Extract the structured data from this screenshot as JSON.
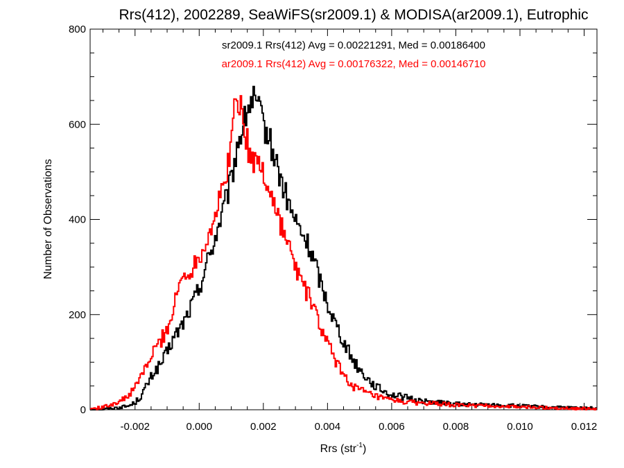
{
  "chart_data": {
    "type": "line",
    "style": "step-histogram",
    "title": "Rrs(412), 2002289, SeaWiFS(sr2009.1) & MODISA(ar2009.1), Eutrophic",
    "xlabel": "Rrs (str",
    "xlabel_sup": "-1",
    "xlabel_close": ")",
    "ylabel": "Number of Observations",
    "xlim": [
      -0.0034,
      0.0124
    ],
    "ylim": [
      0,
      800
    ],
    "grid": false,
    "x_ticks": [
      -0.002,
      0.0,
      0.002,
      0.004,
      0.006,
      0.008,
      0.01,
      0.012
    ],
    "x_tick_labels": [
      "-0.002",
      "0.000",
      "0.002",
      "0.004",
      "0.006",
      "0.008",
      "0.010",
      "0.012"
    ],
    "y_ticks": [
      0,
      200,
      400,
      600,
      800
    ],
    "y_tick_labels": [
      "0",
      "200",
      "400",
      "600",
      "800"
    ],
    "annotations": [
      {
        "text": "sr2009.1 Rrs(412) Avg = 0.00221291, Med = 0.00186400",
        "color": "#000000"
      },
      {
        "text": "ar2009.1 Rrs(412) Avg = 0.00176322, Med = 0.00146710",
        "color": "#ff0000"
      }
    ],
    "series": [
      {
        "color": "#000000",
        "x": [
          -0.0034,
          -0.003,
          -0.0026,
          -0.0022,
          -0.002,
          -0.0018,
          -0.0016,
          -0.0014,
          -0.0012,
          -0.001,
          -0.0008,
          -0.0006,
          -0.0004,
          -0.0002,
          0.0,
          0.0002,
          0.0004,
          0.0006,
          0.0008,
          0.001,
          0.0012,
          0.0014,
          0.0015,
          0.0016,
          0.0017,
          0.0018,
          0.0019,
          0.002,
          0.0022,
          0.0024,
          0.0026,
          0.0028,
          0.003,
          0.0032,
          0.0034,
          0.0036,
          0.0038,
          0.004,
          0.0042,
          0.0044,
          0.0046,
          0.0048,
          0.005,
          0.0052,
          0.0054,
          0.0056,
          0.0058,
          0.006,
          0.0065,
          0.007,
          0.0075,
          0.008,
          0.009,
          0.01,
          0.011,
          0.0124
        ],
        "values": [
          0,
          1,
          4,
          8,
          15,
          30,
          55,
          80,
          95,
          120,
          150,
          170,
          195,
          225,
          255,
          300,
          340,
          385,
          430,
          480,
          560,
          600,
          630,
          645,
          650,
          640,
          620,
          600,
          565,
          520,
          470,
          430,
          395,
          370,
          345,
          310,
          265,
          225,
          190,
          160,
          130,
          105,
          85,
          70,
          55,
          45,
          38,
          32,
          25,
          18,
          15,
          12,
          10,
          8,
          5,
          3
        ]
      },
      {
        "color": "#ff0000",
        "x": [
          -0.0034,
          -0.003,
          -0.0028,
          -0.0026,
          -0.0024,
          -0.0022,
          -0.002,
          -0.0018,
          -0.0016,
          -0.0014,
          -0.0012,
          -0.001,
          -0.0008,
          -0.0006,
          -0.0004,
          -0.0002,
          0.0,
          0.0002,
          0.0004,
          0.0006,
          0.0008,
          0.001,
          0.0011,
          0.0012,
          0.0013,
          0.0014,
          0.0015,
          0.0016,
          0.0017,
          0.0018,
          0.002,
          0.0022,
          0.0024,
          0.0026,
          0.0028,
          0.003,
          0.0032,
          0.0034,
          0.0036,
          0.0038,
          0.004,
          0.0042,
          0.0044,
          0.0046,
          0.0048,
          0.005,
          0.0052,
          0.0054,
          0.0056,
          0.0058,
          0.006,
          0.0065,
          0.007,
          0.0075,
          0.008,
          0.009,
          0.01,
          0.011,
          0.0124
        ],
        "values": [
          2,
          5,
          10,
          15,
          20,
          30,
          45,
          75,
          95,
          125,
          145,
          170,
          210,
          270,
          285,
          300,
          325,
          350,
          390,
          430,
          480,
          560,
          630,
          660,
          640,
          600,
          560,
          530,
          525,
          520,
          500,
          460,
          420,
          380,
          340,
          300,
          270,
          240,
          210,
          170,
          140,
          110,
          85,
          65,
          50,
          42,
          36,
          30,
          26,
          22,
          20,
          16,
          14,
          12,
          10,
          8,
          6,
          4,
          2
        ]
      }
    ]
  }
}
